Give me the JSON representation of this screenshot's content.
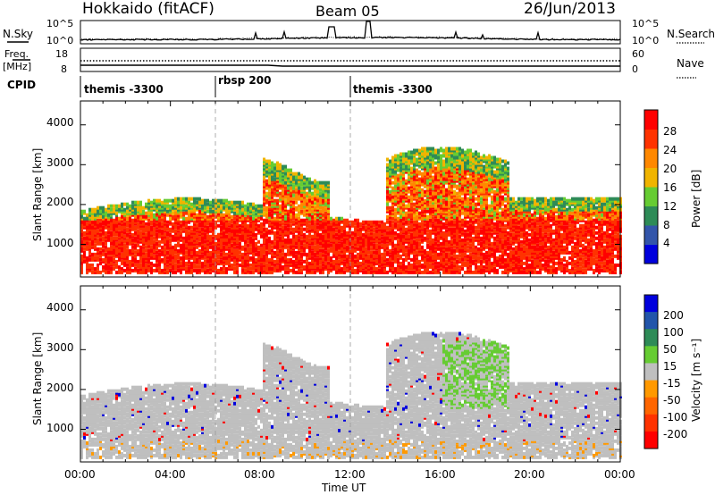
{
  "header": {
    "site": "Hokkaido (fitACF)",
    "beam": "Beam 05",
    "date": "26/Jun/2013"
  },
  "top_panel": {
    "left_label": "N.Sky",
    "left_ticks": [
      "10^5",
      "10^0"
    ],
    "right_ticks": [
      "10^5",
      "10^0"
    ],
    "right_label": "N.Search"
  },
  "freq_panel": {
    "left_label_1": "Freq.",
    "left_label_2": "[MHz]",
    "left_ticks": [
      "18",
      "8"
    ],
    "right_ticks": [
      "60",
      "0"
    ],
    "right_label": "Nave"
  },
  "cpid_panel": {
    "label": "CPID",
    "segments": [
      {
        "text": "themis -3300",
        "start_hour": 0
      },
      {
        "text": "rbsp 200",
        "start_hour": 6
      },
      {
        "text": "themis -3300",
        "start_hour": 12
      }
    ]
  },
  "x_axis": {
    "label": "Time UT",
    "ticks": [
      "00:00",
      "04:00",
      "08:00",
      "12:00",
      "16:00",
      "20:00",
      "00:00"
    ],
    "range_hours": [
      0,
      24
    ]
  },
  "power_panel": {
    "ylabel": "Slant Range [km]",
    "yticks": [
      "1000",
      "2000",
      "3000",
      "4000"
    ],
    "colorbar_label": "Power [dB]",
    "colorbar_ticks": [
      "4",
      "8",
      "12",
      "16",
      "20",
      "24",
      "28"
    ]
  },
  "velocity_panel": {
    "ylabel": "Slant Range [km]",
    "yticks": [
      "1000",
      "2000",
      "3000",
      "4000"
    ],
    "colorbar_label": "Velocity [m s⁻¹]",
    "colorbar_ticks": [
      "200",
      "100",
      "50",
      "15",
      "-15",
      "-50",
      "-100",
      "-200"
    ]
  },
  "chart_data": [
    {
      "type": "heatmap",
      "title": "Power",
      "xlabel": "Time UT",
      "ylabel": "Slant Range [km]",
      "xlim": [
        0,
        24
      ],
      "ylim": [
        180,
        4600
      ],
      "zlabel": "Power [dB]",
      "zlim": [
        0,
        30
      ],
      "colorbar": [
        "#0000dd",
        "#3355aa",
        "#2e8b57",
        "#66cc33",
        "#f0b400",
        "#ff8800",
        "#ff3300",
        "#ff0000"
      ]
    },
    {
      "type": "heatmap",
      "title": "Velocity",
      "xlabel": "Time UT",
      "ylabel": "Slant Range [km]",
      "xlim": [
        0,
        24
      ],
      "ylim": [
        180,
        4600
      ],
      "zlabel": "Velocity [m s⁻¹]",
      "zlim": [
        -250,
        250
      ],
      "colorbar": [
        "#0000dd",
        "#2255aa",
        "#2e8b57",
        "#66cc33",
        "#bfbfbf",
        "#ff9900",
        "#ff6600",
        "#ff3300",
        "#ff0000"
      ]
    }
  ]
}
